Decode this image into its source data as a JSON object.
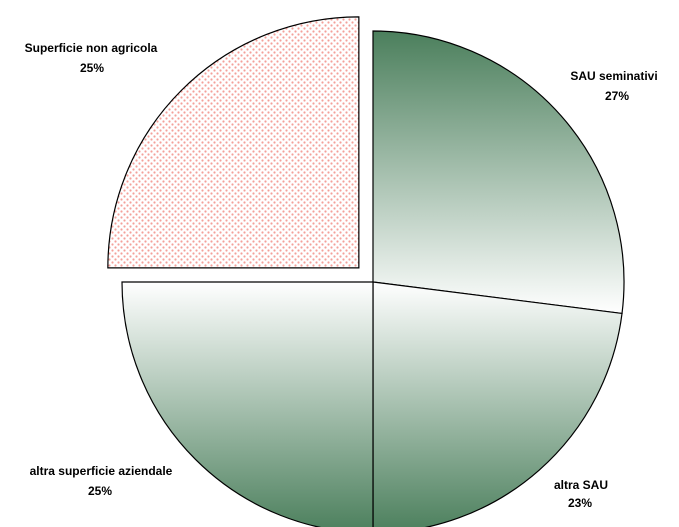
{
  "chart_data": {
    "type": "pie",
    "title": "",
    "exploded": [
      "Superficie non agricola"
    ],
    "slices": [
      {
        "label": "SAU seminativi",
        "value": 27,
        "value_label": "27%",
        "fill": "gradient",
        "colors": [
          "#4b7f5c",
          "#ffffff"
        ]
      },
      {
        "label": "altra SAU",
        "value": 23,
        "value_label": "23%",
        "fill": "gradient",
        "colors": [
          "#ffffff",
          "#4b7f5c"
        ]
      },
      {
        "label": "altra superficie aziendale",
        "value": 25,
        "value_label": "25%",
        "fill": "gradient",
        "colors": [
          "#ffffff",
          "#4b7f5c"
        ]
      },
      {
        "label": "Superficie non agricola",
        "value": 25,
        "value_label": "25%",
        "fill": "dotted-pattern",
        "colors": [
          "#ffffff",
          "#f4a09a"
        ]
      }
    ]
  }
}
